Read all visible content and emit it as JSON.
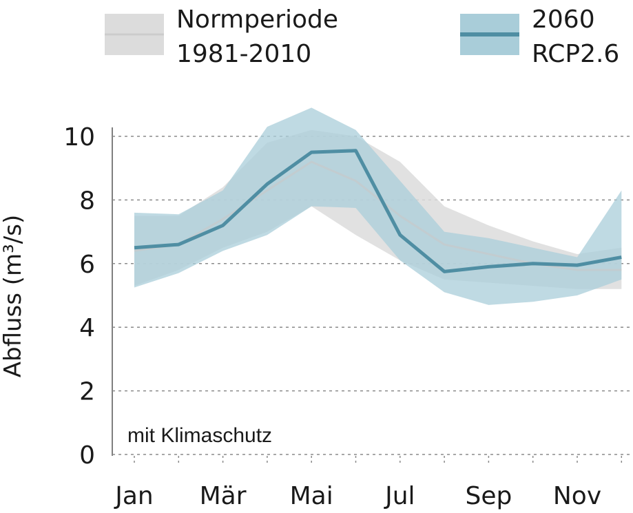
{
  "chart_data": {
    "type": "band-line",
    "y_label": "Abfluss (m³/s)",
    "annotation": "mit Klimaschutz",
    "annotation_color": "#6fa3b8",
    "categories": [
      "Jan",
      null,
      "Mär",
      null,
      "Mai",
      null,
      "Jul",
      null,
      "Sep",
      null,
      "Nov",
      null
    ],
    "ylim": [
      0,
      10
    ],
    "yticks": [
      0,
      2,
      4,
      6,
      8,
      10
    ],
    "grid": true,
    "series": [
      {
        "name": "Normperiode 1981-2010",
        "color": "#c8c8c8",
        "band_color": "#dcdcdc",
        "values": [
          6.4,
          6.6,
          7.4,
          8.3,
          9.2,
          8.6,
          7.5,
          6.6,
          6.3,
          6.0,
          5.8,
          5.8
        ],
        "upper": [
          7.5,
          7.5,
          8.4,
          9.8,
          10.2,
          10.0,
          9.2,
          7.8,
          7.2,
          6.7,
          6.3,
          6.5
        ],
        "lower": [
          5.3,
          5.8,
          6.5,
          7.0,
          7.8,
          6.9,
          6.1,
          5.5,
          5.4,
          5.3,
          5.2,
          5.2
        ]
      },
      {
        "name": "2060 RCP2.6",
        "color": "#4f8ea3",
        "band_color": "#a9cdd9",
        "values": [
          6.5,
          6.6,
          7.2,
          8.5,
          9.5,
          9.55,
          6.9,
          5.75,
          5.9,
          6.0,
          5.95,
          6.2
        ],
        "upper": [
          7.6,
          7.55,
          8.3,
          10.3,
          10.9,
          10.2,
          8.6,
          7.0,
          6.8,
          6.5,
          6.2,
          8.3
        ],
        "lower": [
          5.25,
          5.7,
          6.4,
          6.9,
          7.8,
          7.75,
          6.1,
          5.1,
          4.7,
          4.8,
          5.0,
          5.5
        ]
      }
    ]
  }
}
